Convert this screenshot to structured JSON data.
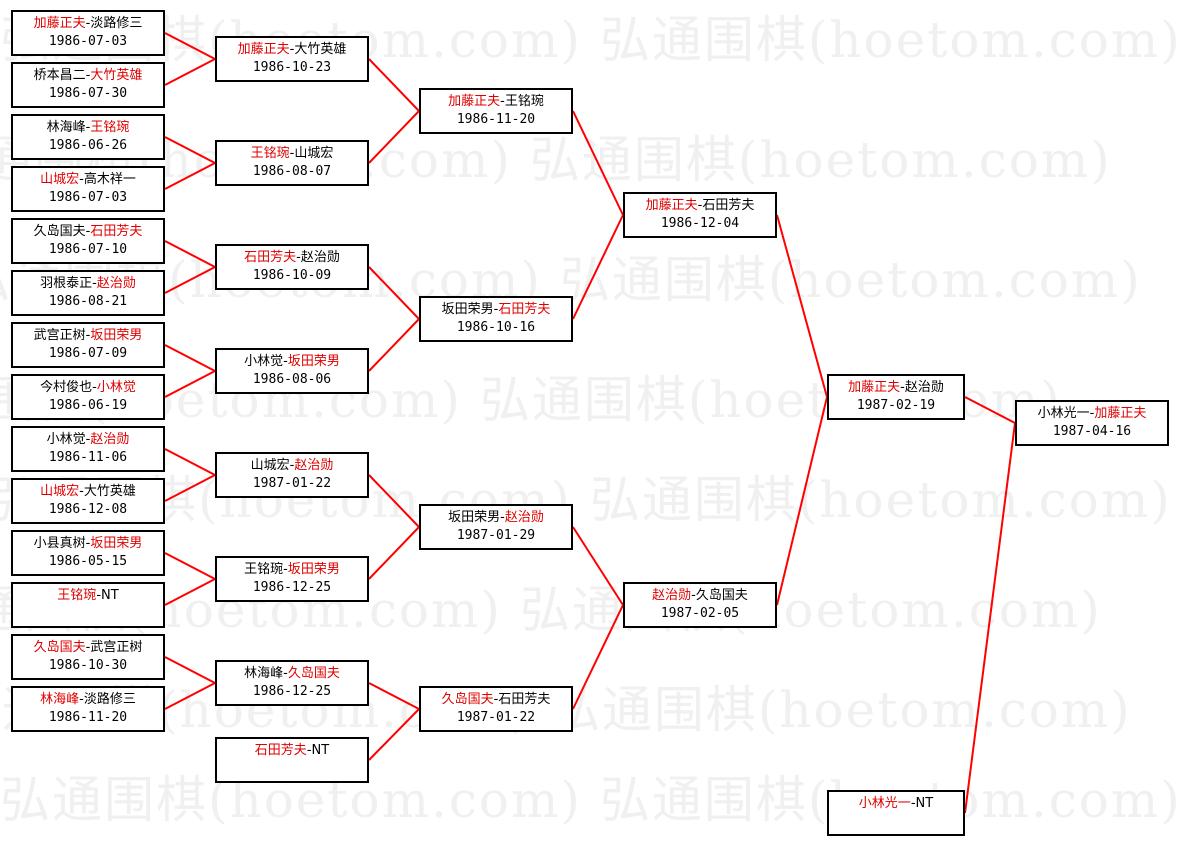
{
  "watermark": "弘通围棋(hoetom.com) 弘通围棋(hoetom.com)",
  "line_color": "#ff0000",
  "winner_color": "#e00000",
  "rounds": [
    [
      {
        "players": [
          {
            "name": "加藤正夫",
            "winner": true
          },
          {
            "name": "淡路修三",
            "winner": false
          }
        ],
        "date": "1986-07-03"
      },
      {
        "players": [
          {
            "name": "桥本昌二",
            "winner": false
          },
          {
            "name": "大竹英雄",
            "winner": true
          }
        ],
        "date": "1986-07-30"
      },
      {
        "players": [
          {
            "name": "林海峰",
            "winner": false
          },
          {
            "name": "王铭琬",
            "winner": true
          }
        ],
        "date": "1986-06-26"
      },
      {
        "players": [
          {
            "name": "山城宏",
            "winner": true
          },
          {
            "name": "高木祥一",
            "winner": false
          }
        ],
        "date": "1986-07-03"
      },
      {
        "players": [
          {
            "name": "久岛国夫",
            "winner": false
          },
          {
            "name": "石田芳夫",
            "winner": true
          }
        ],
        "date": "1986-07-10"
      },
      {
        "players": [
          {
            "name": "羽根泰正",
            "winner": false
          },
          {
            "name": "赵治勋",
            "winner": true
          }
        ],
        "date": "1986-08-21"
      },
      {
        "players": [
          {
            "name": "武宫正树",
            "winner": false
          },
          {
            "name": "坂田荣男",
            "winner": true
          }
        ],
        "date": "1986-07-09"
      },
      {
        "players": [
          {
            "name": "今村俊也",
            "winner": false
          },
          {
            "name": "小林觉",
            "winner": true
          }
        ],
        "date": "1986-06-19"
      },
      {
        "players": [
          {
            "name": "小林觉",
            "winner": false
          },
          {
            "name": "赵治勋",
            "winner": true
          }
        ],
        "date": "1986-11-06"
      },
      {
        "players": [
          {
            "name": "山城宏",
            "winner": true
          },
          {
            "name": "大竹英雄",
            "winner": false
          }
        ],
        "date": "1986-12-08"
      },
      {
        "players": [
          {
            "name": "小县真树",
            "winner": false
          },
          {
            "name": "坂田荣男",
            "winner": true
          }
        ],
        "date": "1986-05-15"
      },
      {
        "players": [
          {
            "name": "王铭琬",
            "winner": true
          },
          {
            "name": "NT",
            "winner": false
          }
        ],
        "date": ""
      },
      {
        "players": [
          {
            "name": "久岛国夫",
            "winner": true
          },
          {
            "name": "武宫正树",
            "winner": false
          }
        ],
        "date": "1986-10-30"
      },
      {
        "players": [
          {
            "name": "林海峰",
            "winner": true
          },
          {
            "name": "淡路修三",
            "winner": false
          }
        ],
        "date": "1986-11-20"
      }
    ],
    [
      {
        "players": [
          {
            "name": "加藤正夫",
            "winner": true
          },
          {
            "name": "大竹英雄",
            "winner": false
          }
        ],
        "date": "1986-10-23"
      },
      {
        "players": [
          {
            "name": "王铭琬",
            "winner": true
          },
          {
            "name": "山城宏",
            "winner": false
          }
        ],
        "date": "1986-08-07"
      },
      {
        "players": [
          {
            "name": "石田芳夫",
            "winner": true
          },
          {
            "name": "赵治勋",
            "winner": false
          }
        ],
        "date": "1986-10-09"
      },
      {
        "players": [
          {
            "name": "小林觉",
            "winner": false
          },
          {
            "name": "坂田荣男",
            "winner": true
          }
        ],
        "date": "1986-08-06"
      },
      {
        "players": [
          {
            "name": "山城宏",
            "winner": false
          },
          {
            "name": "赵治勋",
            "winner": true
          }
        ],
        "date": "1987-01-22"
      },
      {
        "players": [
          {
            "name": "王铭琬",
            "winner": false
          },
          {
            "name": "坂田荣男",
            "winner": true
          }
        ],
        "date": "1986-12-25"
      },
      {
        "players": [
          {
            "name": "林海峰",
            "winner": false
          },
          {
            "name": "久岛国夫",
            "winner": true
          }
        ],
        "date": "1986-12-25"
      },
      {
        "players": [
          {
            "name": "石田芳夫",
            "winner": true
          },
          {
            "name": "NT",
            "winner": false
          }
        ],
        "date": ""
      }
    ],
    [
      {
        "players": [
          {
            "name": "加藤正夫",
            "winner": true
          },
          {
            "name": "王铭琬",
            "winner": false
          }
        ],
        "date": "1986-11-20"
      },
      {
        "players": [
          {
            "name": "坂田荣男",
            "winner": false
          },
          {
            "name": "石田芳夫",
            "winner": true
          }
        ],
        "date": "1986-10-16"
      },
      {
        "players": [
          {
            "name": "坂田荣男",
            "winner": false
          },
          {
            "name": "赵治勋",
            "winner": true
          }
        ],
        "date": "1987-01-29"
      },
      {
        "players": [
          {
            "name": "久岛国夫",
            "winner": true
          },
          {
            "name": "石田芳夫",
            "winner": false
          }
        ],
        "date": "1987-01-22"
      }
    ],
    [
      {
        "players": [
          {
            "name": "加藤正夫",
            "winner": true
          },
          {
            "name": "石田芳夫",
            "winner": false
          }
        ],
        "date": "1986-12-04"
      },
      {
        "players": [
          {
            "name": "赵治勋",
            "winner": true
          },
          {
            "name": "久岛国夫",
            "winner": false
          }
        ],
        "date": "1987-02-05"
      }
    ],
    [
      {
        "players": [
          {
            "name": "加藤正夫",
            "winner": true
          },
          {
            "name": "赵治勋",
            "winner": false
          }
        ],
        "date": "1987-02-19"
      },
      {
        "players": [
          {
            "name": "小林光一",
            "winner": true
          },
          {
            "name": "NT",
            "winner": false
          }
        ],
        "date": ""
      }
    ],
    [
      {
        "players": [
          {
            "name": "小林光一",
            "winner": false
          },
          {
            "name": "加藤正夫",
            "winner": true
          }
        ],
        "date": "1987-04-16"
      }
    ]
  ]
}
